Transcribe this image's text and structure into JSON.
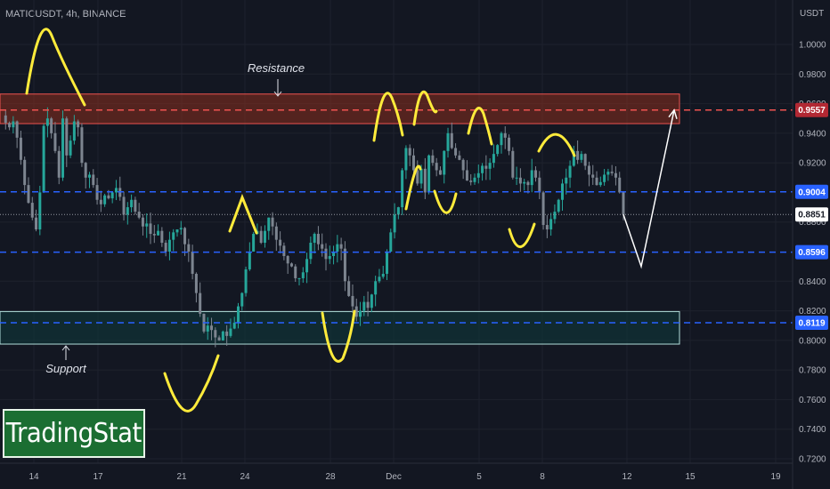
{
  "header": {
    "symbol": "MATICUSDT, 4h, BINANCE",
    "unit": "USDT"
  },
  "logo": {
    "text": "TradingStat"
  },
  "chart_data": {
    "type": "line",
    "price_axis": {
      "ticks": [
        "1.0000",
        "0.9800",
        "0.9600",
        "0.9400",
        "0.9200",
        "0.8800",
        "0.8400",
        "0.8200",
        "0.8000",
        "0.7800",
        "0.7600",
        "0.7400",
        "0.7200"
      ],
      "ylim": [
        0.72,
        1.01
      ]
    },
    "time_axis": {
      "ticks": [
        "14",
        "17",
        "21",
        "24",
        "28",
        "Dec",
        "5",
        "8",
        "12",
        "15",
        "19"
      ]
    },
    "levels": [
      {
        "value": 0.9557,
        "label": "0.9557",
        "style": "dashed",
        "color": "#ef5350",
        "tag_bg": "#b22833"
      },
      {
        "value": 0.9004,
        "label": "0.9004",
        "style": "dashed",
        "color": "#2962ff",
        "tag_bg": "#2962ff"
      },
      {
        "value": 0.8596,
        "label": "0.8596",
        "style": "dashed",
        "color": "#2962ff",
        "tag_bg": "#2962ff"
      },
      {
        "value": 0.8119,
        "label": "0.8119",
        "style": "dashed",
        "color": "#2962ff",
        "tag_bg": "#2962ff"
      }
    ],
    "current_price": {
      "value": 0.8851,
      "label": "0.8851"
    },
    "zones": [
      {
        "name": "Resistance",
        "label": "Resistance",
        "from": 0.9465,
        "to": 0.9665,
        "fill": "#8a2d1d",
        "border": "#ef5350"
      },
      {
        "name": "Support",
        "label": "Support",
        "from": 0.7975,
        "to": 0.8195,
        "fill": "#0f3b3d",
        "border": "#b2dfdb"
      }
    ],
    "price_path": [
      0.952,
      0.947,
      0.944,
      0.948,
      0.937,
      0.922,
      0.905,
      0.893,
      0.883,
      0.875,
      0.9,
      0.945,
      0.95,
      0.94,
      0.928,
      0.91,
      0.95,
      0.925,
      0.935,
      0.948,
      0.944,
      0.92,
      0.91,
      0.912,
      0.905,
      0.895,
      0.892,
      0.898,
      0.896,
      0.9,
      0.903,
      0.897,
      0.885,
      0.89,
      0.895,
      0.887,
      0.883,
      0.877,
      0.879,
      0.872,
      0.871,
      0.874,
      0.866,
      0.86,
      0.868,
      0.873,
      0.875,
      0.876,
      0.865,
      0.86,
      0.845,
      0.832,
      0.818,
      0.806,
      0.81,
      0.807,
      0.802,
      0.8,
      0.806,
      0.803,
      0.808,
      0.812,
      0.823,
      0.832,
      0.848,
      0.86,
      0.872,
      0.874,
      0.866,
      0.874,
      0.883,
      0.877,
      0.868,
      0.864,
      0.857,
      0.852,
      0.85,
      0.842,
      0.842,
      0.846,
      0.855,
      0.866,
      0.872,
      0.865,
      0.862,
      0.855,
      0.857,
      0.86,
      0.865,
      0.862,
      0.84,
      0.83,
      0.823,
      0.816,
      0.82,
      0.826,
      0.822,
      0.831,
      0.84,
      0.843,
      0.845,
      0.86,
      0.873,
      0.885,
      0.89,
      0.915,
      0.93,
      0.925,
      0.915,
      0.906,
      0.916,
      0.9,
      0.925,
      0.92,
      0.915,
      0.912,
      0.928,
      0.94,
      0.93,
      0.925,
      0.922,
      0.915,
      0.908,
      0.907,
      0.91,
      0.913,
      0.918,
      0.916,
      0.92,
      0.926,
      0.932,
      0.94,
      0.937,
      0.928,
      0.91,
      0.91,
      0.906,
      0.907,
      0.905,
      0.915,
      0.91,
      0.9,
      0.878,
      0.875,
      0.882,
      0.887,
      0.895,
      0.906,
      0.91,
      0.918,
      0.928,
      0.922,
      0.926,
      0.918,
      0.912,
      0.91,
      0.905,
      0.907,
      0.912,
      0.914,
      0.913,
      0.91,
      0.9,
      0.885
    ],
    "projection": [
      {
        "t": 0,
        "price": 0.8851
      },
      {
        "t": 1,
        "price": 0.85
      },
      {
        "t": 2,
        "price": 0.9557
      }
    ]
  }
}
